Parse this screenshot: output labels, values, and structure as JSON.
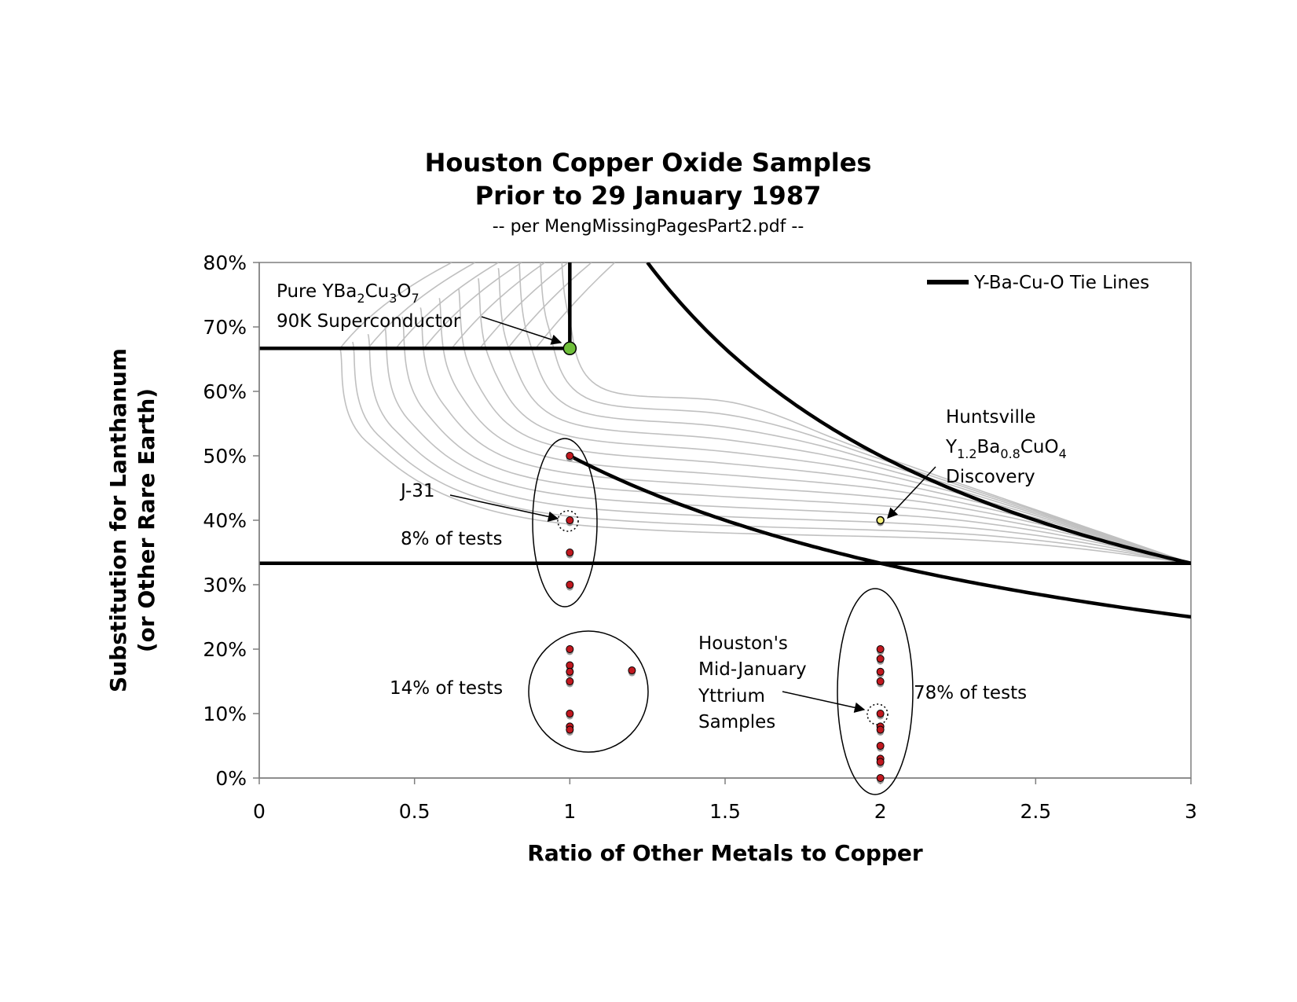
{
  "chart_data": {
    "type": "scatter",
    "title": "Houston Copper Oxide Samples",
    "title_line2": "Prior to 29 January 1987",
    "subtitle": "-- per MengMissingPagesPart2.pdf --",
    "xlabel": "Ratio of Other Metals to Copper",
    "ylabel_line1": "Substitution for Lanthanum",
    "ylabel_line2": "(or Other Rare Earth)",
    "xlim": [
      0,
      3
    ],
    "ylim": [
      0,
      0.8
    ],
    "x_ticks": [
      0,
      0.5,
      1,
      1.5,
      2,
      2.5,
      3
    ],
    "x_tick_labels": [
      "0",
      "0.5",
      "1",
      "1.5",
      "2",
      "2.5",
      "3"
    ],
    "y_ticks": [
      0,
      0.1,
      0.2,
      0.3,
      0.4,
      0.5,
      0.6,
      0.7,
      0.8
    ],
    "y_tick_labels": [
      "0%",
      "10%",
      "20%",
      "30%",
      "40%",
      "50%",
      "60%",
      "70%",
      "80%"
    ],
    "grid": false,
    "legend": {
      "position": "top-right",
      "entries": [
        "Y-Ba-Cu-O Tie Lines"
      ]
    },
    "colors": {
      "tie_line": "#000000",
      "contour": "#c0c0c0",
      "sample": "#c0181f",
      "shadow": "#9a9a9a",
      "pure_point": "#6fbf3a",
      "huntsville_point": "#f5f07a"
    },
    "tie_lines": [
      {
        "type": "horizontal",
        "y": 0.6667,
        "x_from": 0,
        "x_to": 1
      },
      {
        "type": "vertical",
        "x": 1,
        "y_from": 0.6667,
        "y_to": 0.8
      },
      {
        "type": "horizontal",
        "y": 0.3333,
        "x_from": 0,
        "x_to": 3
      },
      {
        "type": "curve",
        "formula": "y = 1/(x+1)",
        "x_from": 1,
        "x_to": 3
      },
      {
        "type": "curve",
        "formula": "y = 1/x",
        "x_from": 1.25,
        "x_to": 3
      }
    ],
    "contour_count": 13,
    "samples": [
      {
        "group": "8% of tests",
        "x": 1,
        "y": 0.5
      },
      {
        "group": "8% of tests",
        "x": 1,
        "y": 0.4
      },
      {
        "group": "8% of tests",
        "x": 1,
        "y": 0.35
      },
      {
        "group": "8% of tests",
        "x": 1,
        "y": 0.3
      },
      {
        "group": "14% of tests",
        "x": 1,
        "y": 0.2
      },
      {
        "group": "14% of tests",
        "x": 1,
        "y": 0.175
      },
      {
        "group": "14% of tests",
        "x": 1,
        "y": 0.165
      },
      {
        "group": "14% of tests",
        "x": 1,
        "y": 0.15
      },
      {
        "group": "14% of tests",
        "x": 1,
        "y": 0.1
      },
      {
        "group": "14% of tests",
        "x": 1,
        "y": 0.08
      },
      {
        "group": "14% of tests",
        "x": 1,
        "y": 0.075
      },
      {
        "group": "14% of tests",
        "x": 1.2,
        "y": 0.167
      },
      {
        "group": "78% of tests",
        "x": 2,
        "y": 0.2
      },
      {
        "group": "78% of tests",
        "x": 2,
        "y": 0.185
      },
      {
        "group": "78% of tests",
        "x": 2,
        "y": 0.165
      },
      {
        "group": "78% of tests",
        "x": 2,
        "y": 0.15
      },
      {
        "group": "78% of tests",
        "x": 2,
        "y": 0.1
      },
      {
        "group": "78% of tests",
        "x": 2,
        "y": 0.08
      },
      {
        "group": "78% of tests",
        "x": 2,
        "y": 0.075
      },
      {
        "group": "78% of tests",
        "x": 2,
        "y": 0.05
      },
      {
        "group": "78% of tests",
        "x": 2,
        "y": 0.03
      },
      {
        "group": "78% of tests",
        "x": 2,
        "y": 0.025
      },
      {
        "group": "78% of tests",
        "x": 2,
        "y": 0.0
      }
    ],
    "special_points": [
      {
        "x": 1,
        "y": 0.6667,
        "color": "#6fbf3a"
      },
      {
        "x": 2,
        "y": 0.4,
        "color": "#f5f07a"
      }
    ],
    "annotations": {
      "pure_line1": {
        "text": "Pure YBa",
        "sub1": "2",
        "mid": "Cu",
        "sub2": "3",
        "end": "O",
        "sub3": "7"
      },
      "pure_line2": "90K Superconductor",
      "huntsville_line1": "Huntsville",
      "huntsville_formula": {
        "a": "Y",
        "s1": "1.2",
        "b": "Ba",
        "s2": "0.8",
        "c": "CuO",
        "s3": "4"
      },
      "huntsville_line3": "Discovery",
      "j31": "J-31",
      "pct8": "8% of tests",
      "pct14": "14% of tests",
      "pct78": "78% of tests",
      "houston_lines": [
        "Houston's",
        "Mid-January",
        "Yttrium",
        "Samples"
      ]
    }
  }
}
